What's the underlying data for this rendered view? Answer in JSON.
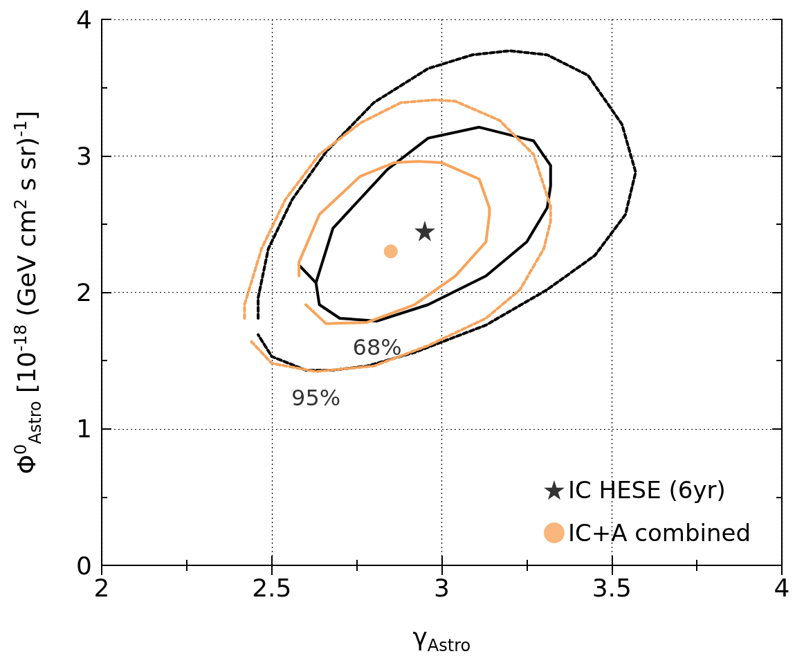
{
  "chart_data": {
    "type": "line",
    "xlabel": "γ$_{Astro}$",
    "ylabel": "Φ$^{0}$$_{Astro}$ [10$^{-18}$ (GeV cm$^{2}$ s sr)$^{-1}$]",
    "xlim": [
      2,
      4
    ],
    "xticks": [
      2,
      2.5,
      3,
      3.5,
      4
    ],
    "ylim": [
      0,
      4
    ],
    "yticks": [
      0,
      1,
      2,
      3,
      4
    ],
    "grid": true,
    "legend": "bottom right",
    "annotations": [
      {
        "text": "68%",
        "x": 2.81,
        "y": 1.79
      },
      {
        "text": "95%",
        "x": 2.63,
        "y": 1.42
      }
    ],
    "series": [
      {
        "color": "#000000",
        "line_style": "solid",
        "marker": "none",
        "x": [
          2.58,
          2.63,
          2.68,
          2.84,
          2.96,
          3.11,
          3.27,
          3.32,
          3.32,
          3.31,
          3.25,
          3.13,
          2.96,
          2.81,
          2.7,
          2.64,
          2.63
        ],
        "values": [
          2.2,
          2.07,
          2.47,
          2.9,
          3.13,
          3.21,
          3.11,
          2.93,
          2.78,
          2.62,
          2.37,
          2.12,
          1.91,
          1.79,
          1.81,
          1.91,
          2.07
        ]
      },
      {
        "color": "#000000",
        "line_style": "dashed",
        "marker": "none",
        "x": [
          2.46,
          2.46,
          2.49,
          2.56,
          2.66,
          2.8,
          2.96,
          3.09,
          3.2,
          3.31,
          3.43,
          3.53,
          3.57,
          3.54,
          3.45,
          3.31,
          3.13,
          2.92,
          2.78,
          2.68,
          2.6,
          2.5,
          2.46
        ],
        "values": [
          1.81,
          1.96,
          2.32,
          2.68,
          3.03,
          3.39,
          3.64,
          3.74,
          3.77,
          3.74,
          3.59,
          3.23,
          2.88,
          2.57,
          2.27,
          2.02,
          1.76,
          1.56,
          1.46,
          1.43,
          1.43,
          1.53,
          1.69
        ]
      },
      {
        "color": "#f7a45c",
        "line_style": "solid",
        "marker": "none",
        "x": [
          2.58,
          2.58,
          2.64,
          2.76,
          2.86,
          2.93,
          3.0,
          3.11,
          3.14,
          3.14,
          3.13,
          3.04,
          2.92,
          2.78,
          2.66,
          2.6
        ],
        "values": [
          2.12,
          2.22,
          2.57,
          2.85,
          2.95,
          2.96,
          2.95,
          2.83,
          2.62,
          2.57,
          2.37,
          2.12,
          1.91,
          1.78,
          1.77,
          1.91
        ]
      },
      {
        "color": "#f7a45c",
        "line_style": "dashed",
        "marker": "none",
        "x": [
          2.42,
          2.42,
          2.47,
          2.54,
          2.64,
          2.76,
          2.88,
          2.98,
          3.04,
          3.17,
          3.27,
          3.32,
          3.32,
          3.3,
          3.23,
          3.13,
          2.96,
          2.8,
          2.63,
          2.5,
          2.44
        ],
        "values": [
          1.81,
          1.91,
          2.32,
          2.68,
          3.01,
          3.24,
          3.39,
          3.41,
          3.4,
          3.26,
          3.01,
          2.63,
          2.52,
          2.32,
          2.02,
          1.81,
          1.61,
          1.46,
          1.42,
          1.48,
          1.64
        ]
      },
      {
        "type": "scatter",
        "name": "IC HESE (6yr)",
        "color": "#000000",
        "marker": "star",
        "x": [
          2.95
        ],
        "values": [
          2.45
        ]
      },
      {
        "type": "scatter",
        "name": "IC+A combined",
        "color": "#f7a45c",
        "marker": "circle",
        "x": [
          2.85
        ],
        "values": [
          2.3
        ]
      }
    ]
  }
}
